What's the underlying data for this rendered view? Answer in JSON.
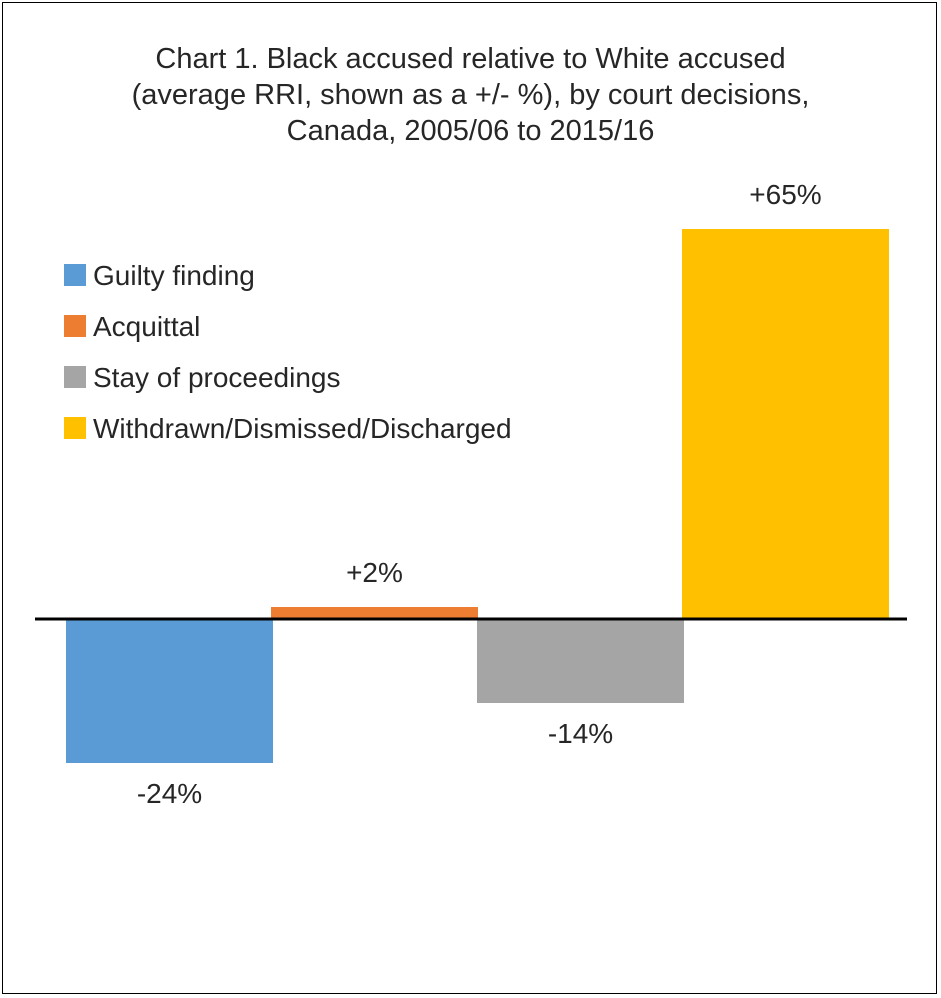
{
  "chart_data": {
    "type": "bar",
    "title_lines": [
      "Chart 1. Black accused relative to White accused",
      "(average RRI, shown as a +/- %), by court decisions,",
      "Canada, 2005/06 to 2015/16"
    ],
    "categories": [
      "Guilty finding",
      "Acquittal",
      "Stay of proceedings",
      "Withdrawn/Dismissed/Discharged"
    ],
    "values": [
      -24,
      2,
      -14,
      65
    ],
    "data_labels": [
      "-24%",
      "+2%",
      "-14%",
      "+65%"
    ],
    "colors": [
      "#5B9BD5",
      "#ED7D31",
      "#A5A5A5",
      "#FFC000"
    ],
    "xlabel": "",
    "ylabel": "",
    "ylim": [
      -24,
      65
    ],
    "grid": false,
    "legend_position": "top-left",
    "axes_visible": false,
    "zero_line": true
  }
}
